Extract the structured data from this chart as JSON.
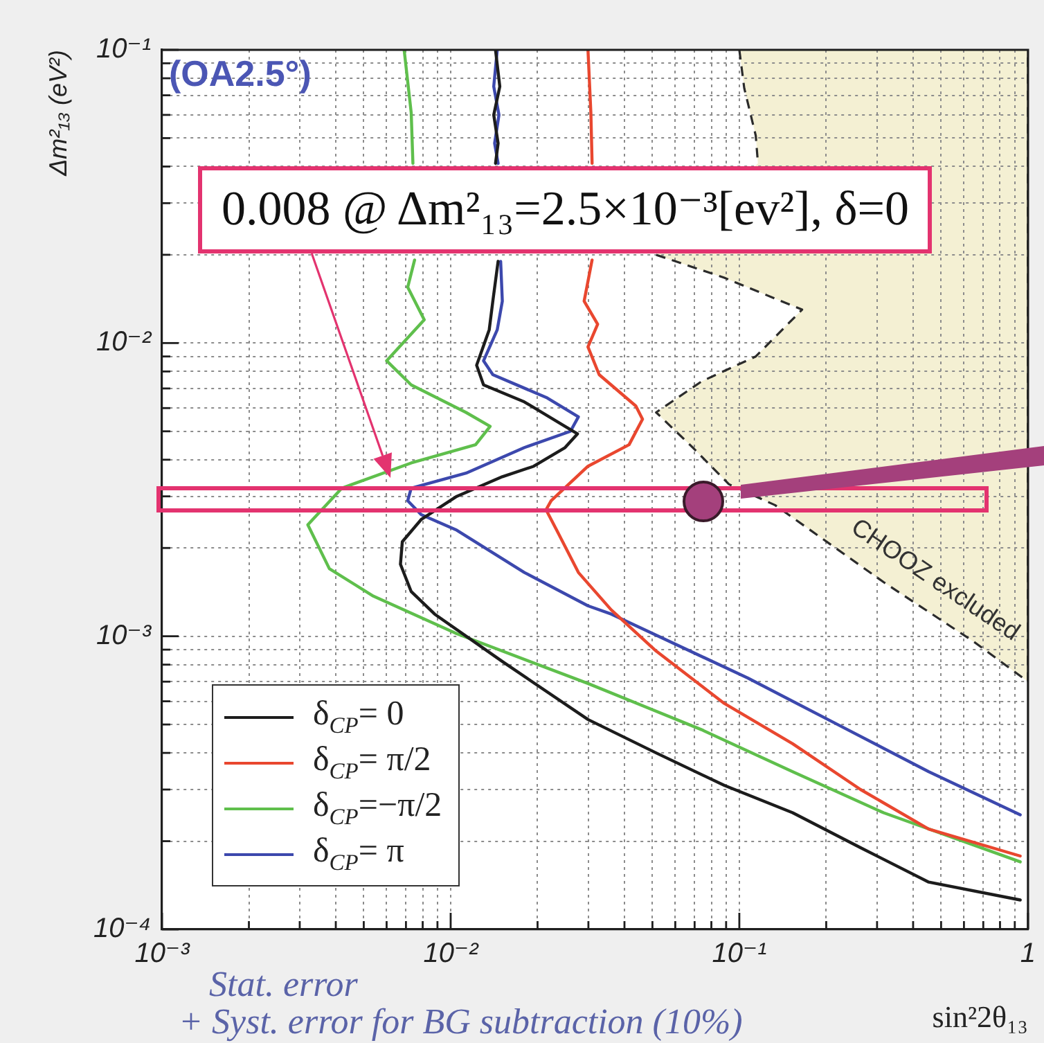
{
  "chart_data": {
    "type": "line",
    "xlabel": "sin²2θ₁₃",
    "ylabel": "Δm²₁₃ (eV²)",
    "log": "xy",
    "grid": true,
    "legend": "bottom left",
    "xlim": [
      0.001,
      1
    ],
    "ylim": [
      0.0001,
      0.1
    ],
    "xticks": [
      {
        "value": 0.001,
        "label": "10⁻³"
      },
      {
        "value": 0.002,
        "label": null
      },
      {
        "value": 0.003,
        "label": null
      },
      {
        "value": 0.004,
        "label": null
      },
      {
        "value": 0.005,
        "label": null
      },
      {
        "value": 0.006,
        "label": null
      },
      {
        "value": 0.007,
        "label": null
      },
      {
        "value": 0.008,
        "label": null
      },
      {
        "value": 0.009,
        "label": null
      },
      {
        "value": 0.01,
        "label": "10⁻²"
      },
      {
        "value": 0.02,
        "label": null
      },
      {
        "value": 0.03,
        "label": null
      },
      {
        "value": 0.04,
        "label": null
      },
      {
        "value": 0.05,
        "label": null
      },
      {
        "value": 0.06,
        "label": null
      },
      {
        "value": 0.07,
        "label": null
      },
      {
        "value": 0.08,
        "label": null
      },
      {
        "value": 0.09,
        "label": null
      },
      {
        "value": 0.1,
        "label": "10⁻¹"
      },
      {
        "value": 0.2,
        "label": null
      },
      {
        "value": 0.3,
        "label": null
      },
      {
        "value": 0.4,
        "label": null
      },
      {
        "value": 0.5,
        "label": null
      },
      {
        "value": 0.6,
        "label": null
      },
      {
        "value": 0.7,
        "label": null
      },
      {
        "value": 0.8,
        "label": null
      },
      {
        "value": 0.9,
        "label": null
      },
      1
    ],
    "yticks": [
      {
        "value": 0.0001,
        "label": "10⁻⁴"
      },
      {
        "value": 0.0002,
        "label": null
      },
      {
        "value": 0.0003,
        "label": null
      },
      {
        "value": 0.0004,
        "label": null
      },
      {
        "value": 0.0005,
        "label": null
      },
      {
        "value": 0.0006,
        "label": null
      },
      {
        "value": 0.0007,
        "label": null
      },
      {
        "value": 0.0008,
        "label": null
      },
      {
        "value": 0.0009,
        "label": null
      },
      {
        "value": 0.001,
        "label": "10⁻³"
      },
      {
        "value": 0.002,
        "label": null
      },
      {
        "value": 0.003,
        "label": null
      },
      {
        "value": 0.004,
        "label": null
      },
      {
        "value": 0.005,
        "label": null
      },
      {
        "value": 0.006,
        "label": null
      },
      {
        "value": 0.007,
        "label": null
      },
      {
        "value": 0.008,
        "label": null
      },
      {
        "value": 0.009,
        "label": null
      },
      {
        "value": 0.01,
        "label": "10⁻²"
      },
      {
        "value": 0.02,
        "label": null
      },
      {
        "value": 0.03,
        "label": null
      },
      {
        "value": 0.04,
        "label": null
      },
      {
        "value": 0.05,
        "label": null
      },
      {
        "value": 0.06,
        "label": null
      },
      {
        "value": 0.07,
        "label": null
      },
      {
        "value": 0.08,
        "label": null
      },
      {
        "value": 0.09,
        "label": null
      },
      {
        "value": 0.1,
        "label": "10⁻¹"
      }
    ],
    "series": [
      {
        "name": "δ$_{CP}$= 0",
        "color": "#1c1c1c",
        "x": [
          0.0143,
          0.0148,
          0.0141,
          0.0146,
          0.0143,
          null,
          0.0146,
          0.014,
          0.0136,
          0.0123,
          0.013,
          0.018,
          0.0249,
          0.0275,
          0.0249,
          0.0194,
          0.0151,
          0.0105,
          0.0079,
          0.0068,
          0.0067,
          0.0073,
          0.0088,
          0.0151,
          0.0299,
          0.0515,
          0.0887,
          0.153,
          0.263,
          0.453,
          0.94
        ],
        "values": [
          0.1,
          0.075,
          0.06,
          0.048,
          0.041,
          null,
          0.019,
          0.0139,
          0.0111,
          0.0084,
          0.0072,
          0.0063,
          0.0052,
          0.0049,
          0.0044,
          0.0038,
          0.0035,
          0.003,
          0.0025,
          0.0021,
          0.00176,
          0.00142,
          0.00119,
          0.00082,
          0.00052,
          0.0004,
          0.00031,
          0.00025,
          0.00019,
          0.000145,
          0.000126
        ]
      },
      {
        "name": "δ$_{CP}$= π/2",
        "color": "#e9472f",
        "x": [
          0.0299,
          0.0306,
          0.0309,
          null,
          0.0309,
          0.029,
          0.0323,
          0.0299,
          0.0327,
          0.0438,
          0.0462,
          0.0415,
          0.0299,
          0.0223,
          0.0214,
          0.0233,
          0.0277,
          0.036,
          0.0515,
          0.0887,
          0.153,
          0.263,
          0.453,
          0.94
        ],
        "values": [
          0.1,
          0.061,
          0.041,
          null,
          0.0192,
          0.0139,
          0.0116,
          0.0097,
          0.0078,
          0.0061,
          0.0055,
          0.0045,
          0.0038,
          0.0029,
          0.0027,
          0.0023,
          0.00165,
          0.00123,
          0.00089,
          0.00059,
          0.00043,
          0.0003,
          0.00022,
          0.000178
        ]
      },
      {
        "name": "δ$_{CP}$=−π/2",
        "color": "#5fbf4c",
        "x": [
          0.0069,
          0.0073,
          0.0074,
          null,
          0.0075,
          0.0071,
          0.0081,
          0.006,
          0.0073,
          0.0113,
          0.0137,
          0.0122,
          0.0073,
          0.0042,
          0.0032,
          0.0038,
          0.0054,
          0.0105,
          0.0299,
          0.074,
          0.153,
          0.316,
          0.94
        ],
        "values": [
          0.1,
          0.061,
          0.041,
          null,
          0.0192,
          0.0155,
          0.012,
          0.0087,
          0.0072,
          0.0058,
          0.0052,
          0.0045,
          0.0039,
          0.0032,
          0.0024,
          0.0017,
          0.00137,
          0.00102,
          0.00069,
          0.00048,
          0.000345,
          0.00025,
          0.00017
        ]
      },
      {
        "name": "δ$_{CP}$= π",
        "color": "#3c48ad",
        "x": [
          0.0145,
          0.0141,
          0.0147,
          0.0142,
          0.0146,
          null,
          0.0149,
          0.0151,
          0.0145,
          0.013,
          0.014,
          0.0216,
          0.0277,
          0.026,
          0.018,
          0.0113,
          0.0073,
          0.0071,
          0.0079,
          0.0105,
          0.018,
          0.0299,
          0.036,
          0.107,
          0.219,
          0.453,
          0.94
        ],
        "values": [
          0.1,
          0.075,
          0.06,
          0.048,
          0.041,
          null,
          0.019,
          0.0139,
          0.0111,
          0.0087,
          0.0078,
          0.0065,
          0.0056,
          0.005,
          0.0044,
          0.0036,
          0.0032,
          0.0029,
          0.0026,
          0.0023,
          0.00165,
          0.00127,
          0.00119,
          0.00072,
          0.0005,
          0.000345,
          0.000246
        ]
      },
      {
        "type": "area",
        "name": "CHOOZ excluded",
        "color": "#f4f0d3",
        "line_style": "dashed",
        "x": [
          0.1,
          0.104,
          0.114,
          0.116,
          null,
          0.0515,
          0.0887,
          0.165,
          0.114,
          0.074,
          0.0515,
          0.069,
          0.092,
          0.133,
          0.316,
          0.647,
          1,
          1
        ],
        "values": [
          0.1,
          0.074,
          0.051,
          0.041,
          null,
          0.02,
          0.0167,
          0.013,
          0.009,
          0.0074,
          0.0058,
          0.0044,
          0.0033,
          0.0028,
          0.00153,
          0.00096,
          0.0007,
          0.1
        ]
      }
    ],
    "annotations": [
      "(OA2.5°)",
      "0.008 @ Δm²₁₃=2.5×10⁻³[ev²], δ=0",
      "Stat. error",
      "+ Syst. error for BG subtraction (10%)"
    ]
  }
}
